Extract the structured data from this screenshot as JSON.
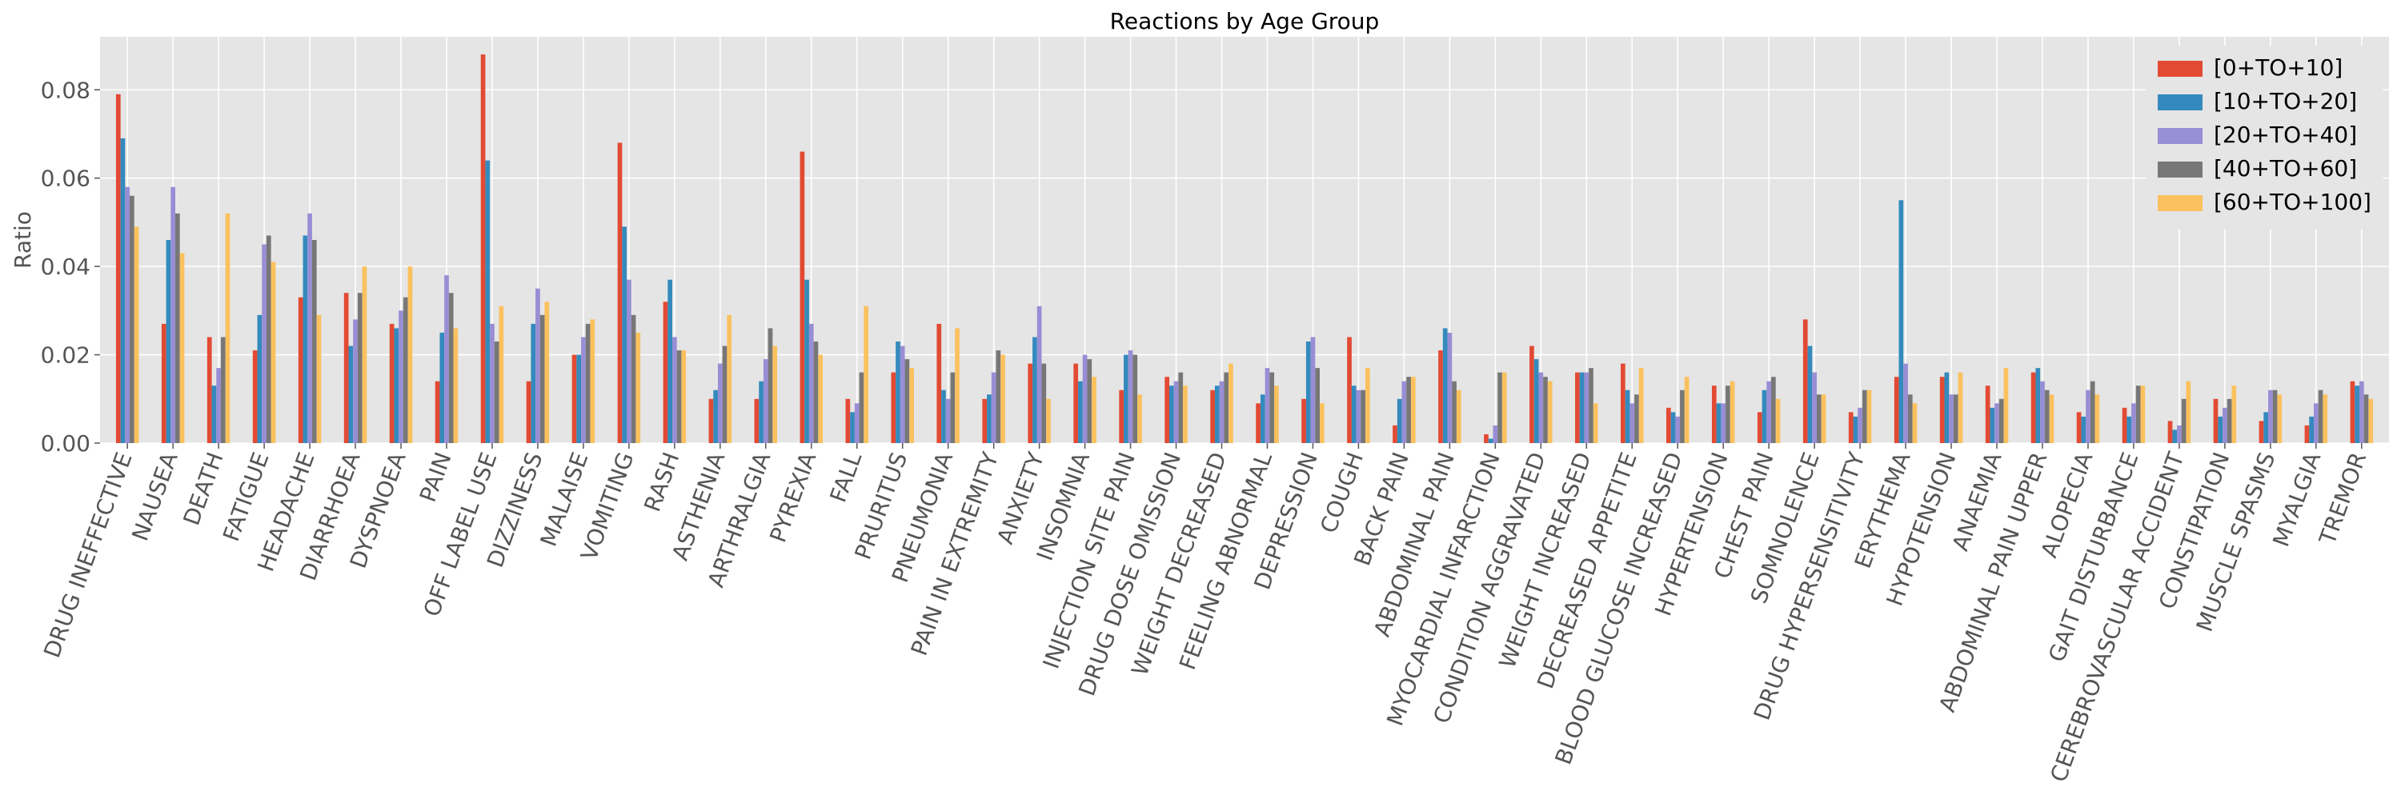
{
  "chart_data": {
    "type": "bar",
    "title": "Reactions by Age Group",
    "xlabel": "",
    "ylabel": "Ratio",
    "ylim": [
      0,
      0.092
    ],
    "yticks": [
      0.0,
      0.02,
      0.04,
      0.06,
      0.08
    ],
    "ytick_labels": [
      "0.00",
      "0.02",
      "0.04",
      "0.06",
      "0.08"
    ],
    "grid": true,
    "legend_position": "top-right",
    "categories": [
      "DRUG INEFFECTIVE",
      "NAUSEA",
      "DEATH",
      "FATIGUE",
      "HEADACHE",
      "DIARRHOEA",
      "DYSPNOEA",
      "PAIN",
      "OFF LABEL USE",
      "DIZZINESS",
      "MALAISE",
      "VOMITING",
      "RASH",
      "ASTHENIA",
      "ARTHRALGIA",
      "PYREXIA",
      "FALL",
      "PRURITUS",
      "PNEUMONIA",
      "PAIN IN EXTREMITY",
      "ANXIETY",
      "INSOMNIA",
      "INJECTION SITE PAIN",
      "DRUG DOSE OMISSION",
      "WEIGHT DECREASED",
      "FEELING ABNORMAL",
      "DEPRESSION",
      "COUGH",
      "BACK PAIN",
      "ABDOMINAL PAIN",
      "MYOCARDIAL INFARCTION",
      "CONDITION AGGRAVATED",
      "WEIGHT INCREASED",
      "DECREASED APPETITE",
      "BLOOD GLUCOSE INCREASED",
      "HYPERTENSION",
      "CHEST PAIN",
      "SOMNOLENCE",
      "DRUG HYPERSENSITIVITY",
      "ERYTHEMA",
      "HYPOTENSION",
      "ANAEMIA",
      "ABDOMINAL PAIN UPPER",
      "ALOPECIA",
      "GAIT DISTURBANCE",
      "CEREBROVASCULAR ACCIDENT",
      "CONSTIPATION",
      "MUSCLE SPASMS",
      "MYALGIA",
      "TREMOR"
    ],
    "series": [
      {
        "name": "[0+TO+10]",
        "color": "#E24A33",
        "values": [
          0.079,
          0.027,
          0.024,
          0.021,
          0.033,
          0.034,
          0.027,
          0.014,
          0.088,
          0.014,
          0.02,
          0.068,
          0.032,
          0.01,
          0.01,
          0.066,
          0.01,
          0.016,
          0.027,
          0.01,
          0.018,
          0.018,
          0.012,
          0.015,
          0.012,
          0.009,
          0.01,
          0.024,
          0.004,
          0.021,
          0.002,
          0.022,
          0.016,
          0.018,
          0.008,
          0.013,
          0.007,
          0.028,
          0.007,
          0.015,
          0.015,
          0.013,
          0.016,
          0.007,
          0.008,
          0.005,
          0.01,
          0.005,
          0.004,
          0.014
        ]
      },
      {
        "name": "[10+TO+20]",
        "color": "#348ABD",
        "values": [
          0.069,
          0.046,
          0.013,
          0.029,
          0.047,
          0.022,
          0.026,
          0.025,
          0.064,
          0.027,
          0.02,
          0.049,
          0.037,
          0.012,
          0.014,
          0.037,
          0.007,
          0.023,
          0.012,
          0.011,
          0.024,
          0.014,
          0.02,
          0.013,
          0.013,
          0.011,
          0.023,
          0.013,
          0.01,
          0.026,
          0.001,
          0.019,
          0.016,
          0.012,
          0.007,
          0.009,
          0.012,
          0.022,
          0.006,
          0.055,
          0.016,
          0.008,
          0.017,
          0.006,
          0.006,
          0.003,
          0.006,
          0.007,
          0.006,
          0.013
        ]
      },
      {
        "name": "[20+TO+40]",
        "color": "#988ED5",
        "values": [
          0.058,
          0.058,
          0.017,
          0.045,
          0.052,
          0.028,
          0.03,
          0.038,
          0.027,
          0.035,
          0.024,
          0.037,
          0.024,
          0.018,
          0.019,
          0.027,
          0.009,
          0.022,
          0.01,
          0.016,
          0.031,
          0.02,
          0.021,
          0.014,
          0.014,
          0.017,
          0.024,
          0.012,
          0.014,
          0.025,
          0.004,
          0.016,
          0.016,
          0.009,
          0.006,
          0.009,
          0.014,
          0.016,
          0.008,
          0.018,
          0.011,
          0.009,
          0.014,
          0.012,
          0.009,
          0.004,
          0.008,
          0.012,
          0.009,
          0.014
        ]
      },
      {
        "name": "[40+TO+60]",
        "color": "#777777",
        "values": [
          0.056,
          0.052,
          0.024,
          0.047,
          0.046,
          0.034,
          0.033,
          0.034,
          0.023,
          0.029,
          0.027,
          0.029,
          0.021,
          0.022,
          0.026,
          0.023,
          0.016,
          0.019,
          0.016,
          0.021,
          0.018,
          0.019,
          0.02,
          0.016,
          0.016,
          0.016,
          0.017,
          0.012,
          0.015,
          0.014,
          0.016,
          0.015,
          0.017,
          0.011,
          0.012,
          0.013,
          0.015,
          0.011,
          0.012,
          0.011,
          0.011,
          0.01,
          0.012,
          0.014,
          0.013,
          0.01,
          0.01,
          0.012,
          0.012,
          0.011
        ]
      },
      {
        "name": "[60+TO+100]",
        "color": "#FBC15E",
        "values": [
          0.049,
          0.043,
          0.052,
          0.041,
          0.029,
          0.04,
          0.04,
          0.026,
          0.031,
          0.032,
          0.028,
          0.025,
          0.021,
          0.029,
          0.022,
          0.02,
          0.031,
          0.017,
          0.026,
          0.02,
          0.01,
          0.015,
          0.011,
          0.013,
          0.018,
          0.013,
          0.009,
          0.017,
          0.015,
          0.012,
          0.016,
          0.014,
          0.009,
          0.017,
          0.015,
          0.014,
          0.01,
          0.011,
          0.012,
          0.009,
          0.016,
          0.017,
          0.011,
          0.011,
          0.013,
          0.014,
          0.013,
          0.011,
          0.011,
          0.01
        ]
      }
    ]
  }
}
